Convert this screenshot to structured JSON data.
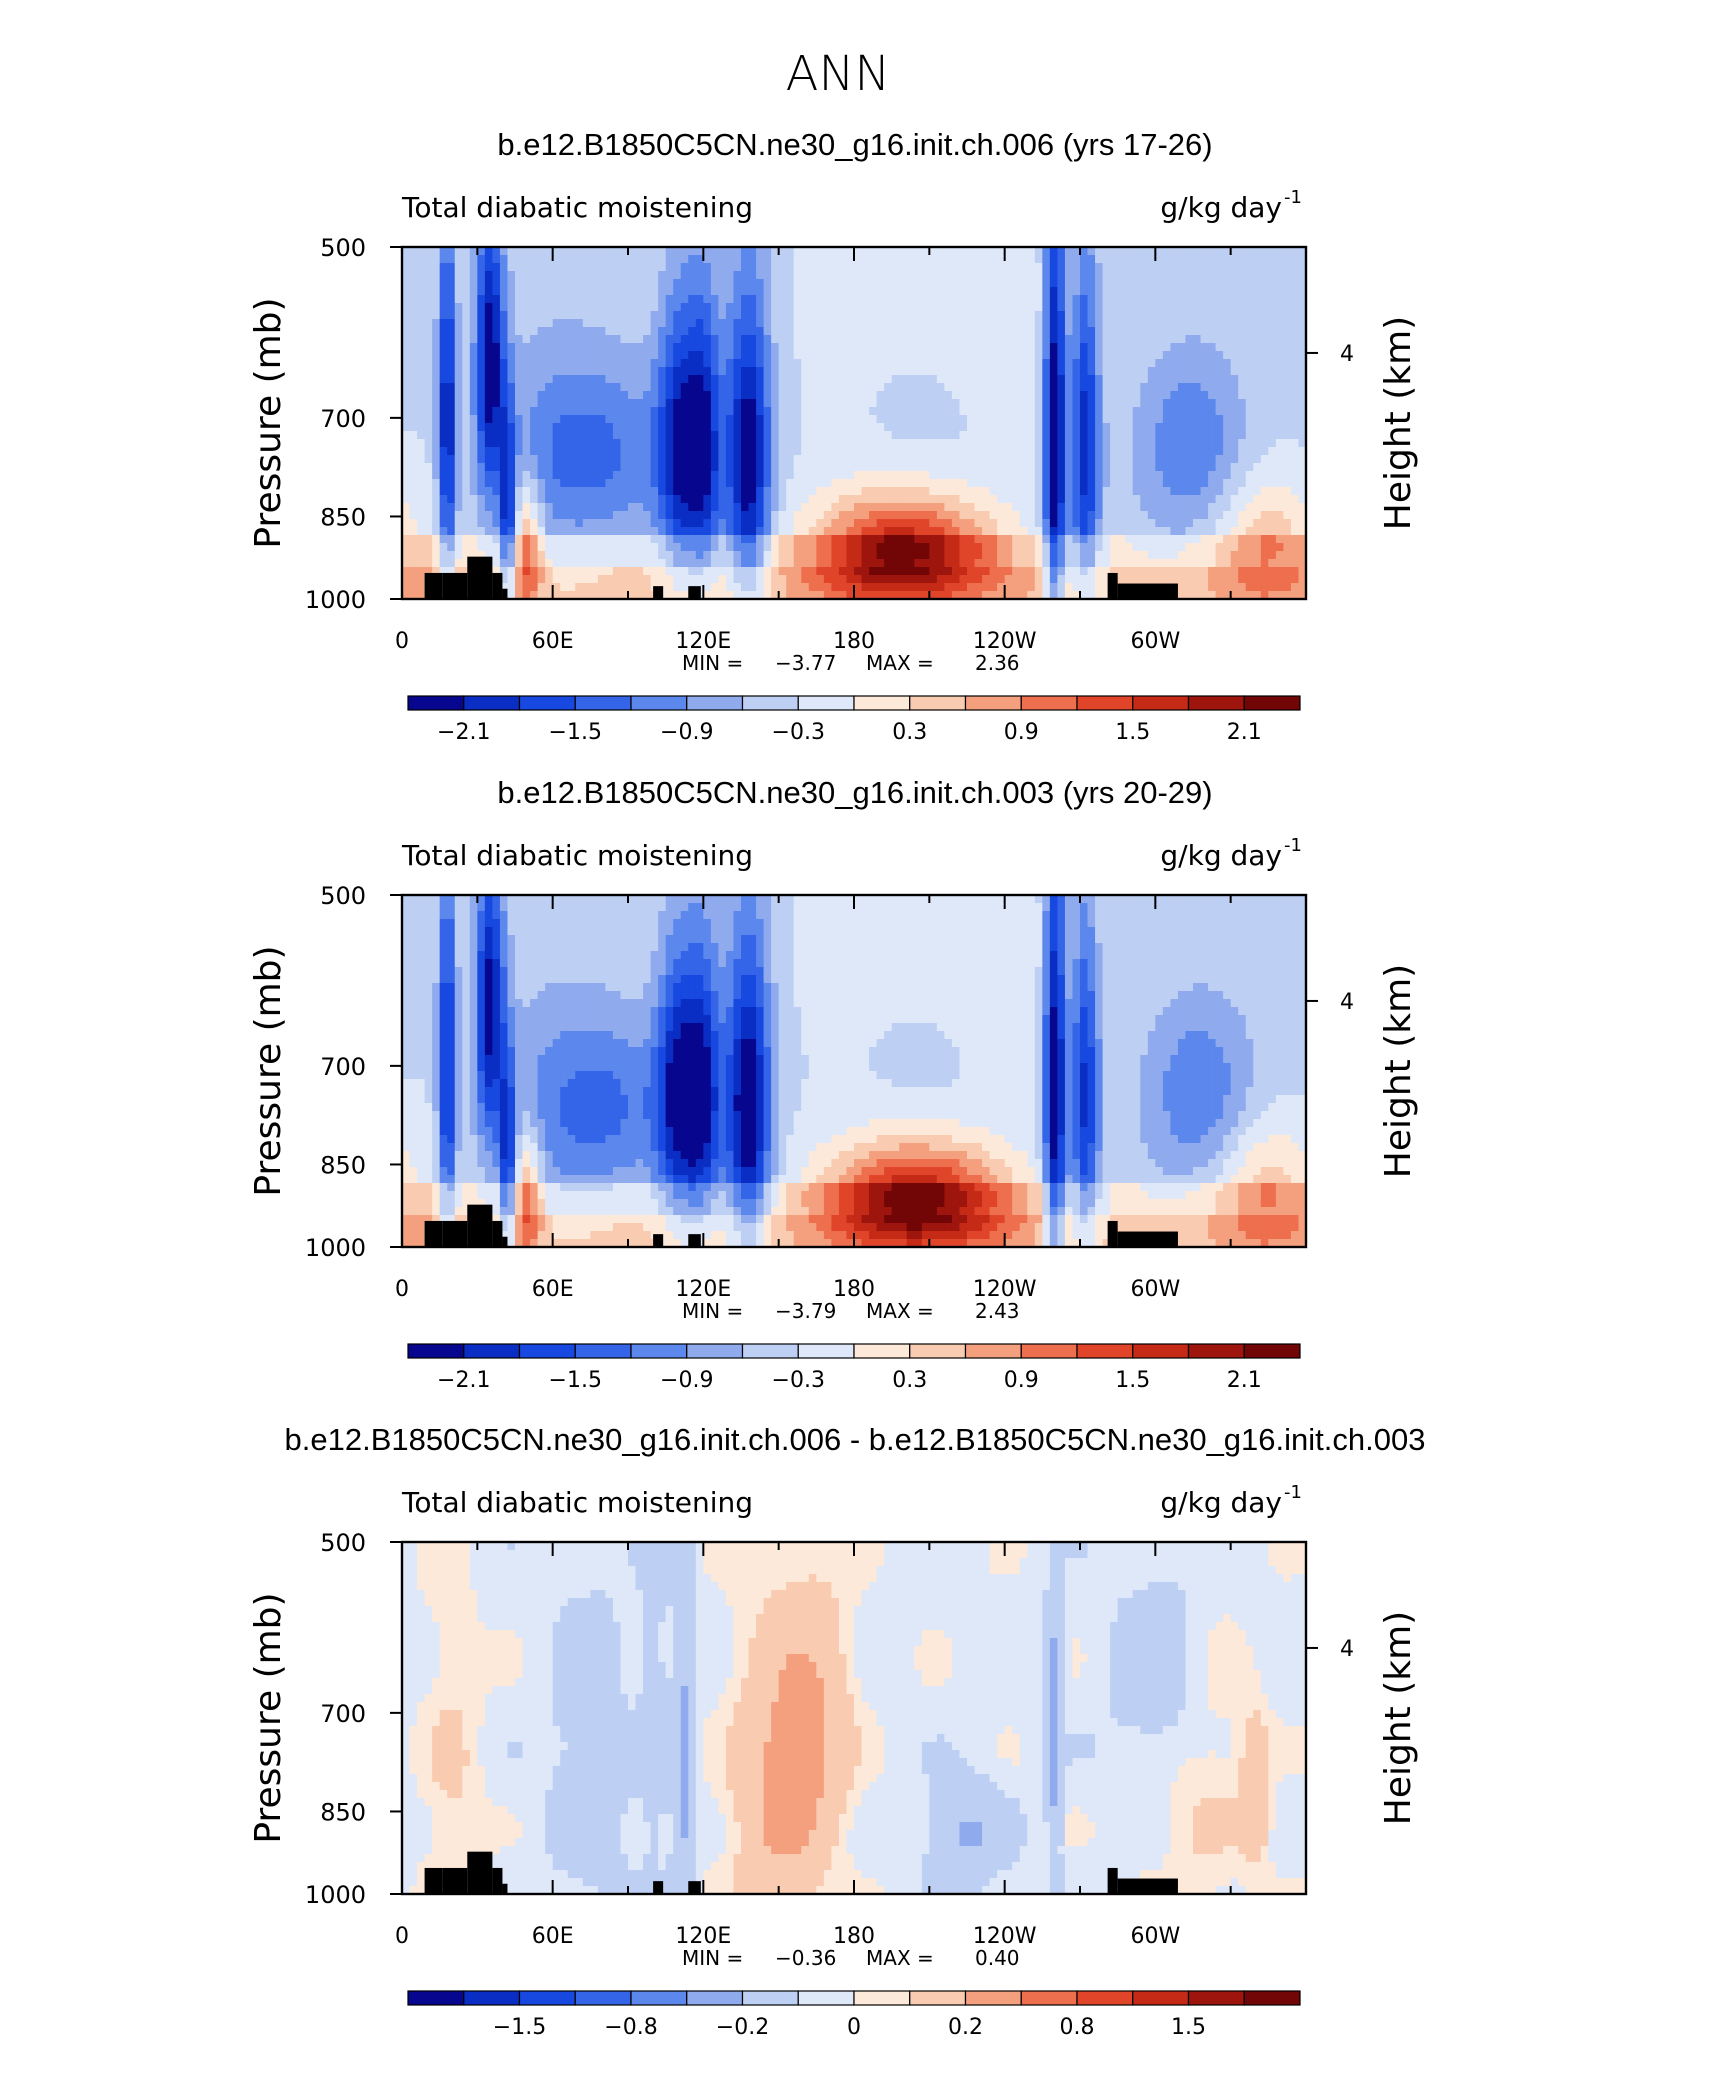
{
  "figure_title": "ANN",
  "chart_data": [
    {
      "type": "heatmap",
      "title": "b.e12.B1850C5CN.ne30_g16.init.ch.006 (yrs 17-26)",
      "variable": "Total diabatic moistening",
      "units": "g/kg day",
      "units_exp": "-1",
      "ylabel": "Pressure (mb)",
      "ylabel_right": "Height (km)",
      "y_ticks": [
        "500",
        "700",
        "850",
        "1000"
      ],
      "y_right_ticks": [
        "4"
      ],
      "x_ticks": [
        "0",
        "60E",
        "120E",
        "180",
        "120W",
        "60W"
      ],
      "min_label": "MIN =",
      "min_value": "−3.77",
      "max_label": "MAX =",
      "max_value": "2.36",
      "colorbar_labels": [
        "−2.1",
        "−1.5",
        "−0.9",
        "−0.3",
        "0.3",
        "0.9",
        "1.5",
        "2.1"
      ],
      "colors": [
        "#06068e",
        "#0a2ec4",
        "#1748e0",
        "#3465e8",
        "#5c87ec",
        "#8fabee",
        "#bdd0f3",
        "#dfe8f9",
        "#fde9d9",
        "#f9cbb0",
        "#f4a07e",
        "#ee6f4d",
        "#e0452a",
        "#c52a17",
        "#9d150c",
        "#720505"
      ],
      "features": [
        {
          "lon": 18,
          "p": 700,
          "v": -1.8,
          "wlon": 2.5,
          "wp": 180
        },
        {
          "lon": 35,
          "p": 620,
          "v": -2.0,
          "wlon": 4,
          "wp": 120
        },
        {
          "lon": 42,
          "p": 850,
          "v": -1.5,
          "wlon": 2.2,
          "wp": 120
        },
        {
          "lon": 50,
          "p": 900,
          "v": 1.2,
          "wlon": 4,
          "wp": 80
        },
        {
          "lon": 75,
          "p": 750,
          "v": -1.0,
          "wlon": 25,
          "wp": 100
        },
        {
          "lon": 110,
          "p": 740,
          "v": -1.5,
          "wlon": 6,
          "wp": 140
        },
        {
          "lon": 120,
          "p": 740,
          "v": -1.6,
          "wlon": 5,
          "wp": 140
        },
        {
          "lon": 138,
          "p": 760,
          "v": -2.0,
          "wlon": 6,
          "wp": 160
        },
        {
          "lon": 200,
          "p": 910,
          "v": 2.2,
          "wlon": 25,
          "wp": 70
        },
        {
          "lon": 260,
          "p": 730,
          "v": -2.2,
          "wlon": 3,
          "wp": 250
        },
        {
          "lon": 272,
          "p": 730,
          "v": -1.6,
          "wlon": 4,
          "wp": 180
        },
        {
          "lon": 315,
          "p": 740,
          "v": -0.9,
          "wlon": 15,
          "wp": 100
        },
        {
          "lon": 235,
          "p": 560,
          "v": 0.2,
          "wlon": 45,
          "wp": 80
        },
        {
          "lon": 345,
          "p": 900,
          "v": 0.9,
          "wlon": 15,
          "wp": 90
        }
      ]
    },
    {
      "type": "heatmap",
      "title": "b.e12.B1850C5CN.ne30_g16.init.ch.003 (yrs 20-29)",
      "variable": "Total diabatic moistening",
      "units": "g/kg day",
      "units_exp": "-1",
      "ylabel": "Pressure (mb)",
      "ylabel_right": "Height (km)",
      "y_ticks": [
        "500",
        "700",
        "850",
        "1000"
      ],
      "y_right_ticks": [
        "4"
      ],
      "x_ticks": [
        "0",
        "60E",
        "120E",
        "180",
        "120W",
        "60W"
      ],
      "min_label": "MIN =",
      "min_value": "−3.79",
      "max_label": "MAX =",
      "max_value": "2.43",
      "colorbar_labels": [
        "−2.1",
        "−1.5",
        "−0.9",
        "−0.3",
        "0.3",
        "0.9",
        "1.5",
        "2.1"
      ],
      "colors": [
        "#06068e",
        "#0a2ec4",
        "#1748e0",
        "#3465e8",
        "#5c87ec",
        "#8fabee",
        "#bdd0f3",
        "#dfe8f9",
        "#fde9d9",
        "#f9cbb0",
        "#f4a07e",
        "#ee6f4d",
        "#e0452a",
        "#c52a17",
        "#9d150c",
        "#720505"
      ],
      "features": [
        {
          "lon": 18,
          "p": 700,
          "v": -1.7,
          "wlon": 2.5,
          "wp": 180
        },
        {
          "lon": 35,
          "p": 620,
          "v": -1.9,
          "wlon": 4,
          "wp": 120
        },
        {
          "lon": 42,
          "p": 850,
          "v": -1.4,
          "wlon": 2.2,
          "wp": 120
        },
        {
          "lon": 50,
          "p": 900,
          "v": 1.2,
          "wlon": 4,
          "wp": 80
        },
        {
          "lon": 78,
          "p": 760,
          "v": -1.0,
          "wlon": 25,
          "wp": 100
        },
        {
          "lon": 110,
          "p": 740,
          "v": -1.6,
          "wlon": 6,
          "wp": 140
        },
        {
          "lon": 120,
          "p": 740,
          "v": -1.5,
          "wlon": 5,
          "wp": 140
        },
        {
          "lon": 138,
          "p": 760,
          "v": -2.1,
          "wlon": 6,
          "wp": 160
        },
        {
          "lon": 205,
          "p": 910,
          "v": 2.3,
          "wlon": 25,
          "wp": 70
        },
        {
          "lon": 260,
          "p": 730,
          "v": -2.1,
          "wlon": 3,
          "wp": 250
        },
        {
          "lon": 272,
          "p": 740,
          "v": -1.5,
          "wlon": 4,
          "wp": 180
        },
        {
          "lon": 318,
          "p": 740,
          "v": -0.9,
          "wlon": 15,
          "wp": 100
        },
        {
          "lon": 235,
          "p": 560,
          "v": 0.2,
          "wlon": 45,
          "wp": 80
        },
        {
          "lon": 345,
          "p": 900,
          "v": 0.9,
          "wlon": 15,
          "wp": 90
        }
      ]
    },
    {
      "type": "heatmap",
      "title": "b.e12.B1850C5CN.ne30_g16.init.ch.006 - b.e12.B1850C5CN.ne30_g16.init.ch.003",
      "variable": "Total diabatic moistening",
      "units": "g/kg day",
      "units_exp": "-1",
      "ylabel": "Pressure (mb)",
      "ylabel_right": "Height (km)",
      "y_ticks": [
        "500",
        "700",
        "850",
        "1000"
      ],
      "y_right_ticks": [
        "4"
      ],
      "x_ticks": [
        "0",
        "60E",
        "120E",
        "180",
        "120W",
        "60W"
      ],
      "min_label": "MIN =",
      "min_value": "−0.36",
      "max_label": "MAX =",
      "max_value": "0.40",
      "colorbar_labels": [
        "−1.5",
        "−0.8",
        "−0.2",
        "0",
        "0.2",
        "0.8",
        "1.5"
      ],
      "colors": [
        "#06068e",
        "#0a2ec4",
        "#1748e0",
        "#3465e8",
        "#5c87ec",
        "#8fabee",
        "#bdd0f3",
        "#dfe8f9",
        "#fde9d9",
        "#f9cbb0",
        "#f4a07e",
        "#ee6f4d",
        "#e0452a",
        "#c52a17",
        "#9d150c",
        "#720505"
      ],
      "features": [
        {
          "lon": 150,
          "p": 820,
          "v": 0.25,
          "wlon": 12,
          "wp": 160
        },
        {
          "lon": 165,
          "p": 720,
          "v": 0.18,
          "wlon": 10,
          "wp": 120
        },
        {
          "lon": 112,
          "p": 780,
          "v": -0.22,
          "wlon": 3,
          "wp": 200
        },
        {
          "lon": 100,
          "p": 720,
          "v": -0.12,
          "wlon": 3,
          "wp": 140
        },
        {
          "lon": 225,
          "p": 890,
          "v": -0.2,
          "wlon": 10,
          "wp": 60
        },
        {
          "lon": 260,
          "p": 720,
          "v": -0.3,
          "wlon": 2,
          "wp": 130
        },
        {
          "lon": 75,
          "p": 800,
          "v": -0.08,
          "wlon": 12,
          "wp": 200
        },
        {
          "lon": 20,
          "p": 800,
          "v": 0.08,
          "wlon": 8,
          "wp": 200
        },
        {
          "lon": 320,
          "p": 800,
          "v": 0.08,
          "wlon": 12,
          "wp": 200
        },
        {
          "lon": 340,
          "p": 820,
          "v": 0.18,
          "wlon": 4,
          "wp": 80
        },
        {
          "lon": 305,
          "p": 650,
          "v": -0.1,
          "wlon": 15,
          "wp": 100
        }
      ]
    }
  ],
  "topography": {
    "note": "terrain blocks reaching up to pressure (mb) at longitude",
    "blocks": [
      {
        "lon0": 9,
        "lon1": 16,
        "p": 950
      },
      {
        "lon0": 16,
        "lon1": 26,
        "p": 950
      },
      {
        "lon0": 26,
        "lon1": 36,
        "p": 920
      },
      {
        "lon0": 36,
        "lon1": 40,
        "p": 950
      },
      {
        "lon0": 40,
        "lon1": 42,
        "p": 980
      },
      {
        "lon0": 100,
        "lon1": 104,
        "p": 975
      },
      {
        "lon0": 114,
        "lon1": 119,
        "p": 975
      },
      {
        "lon0": 281,
        "lon1": 285,
        "p": 950
      },
      {
        "lon0": 285,
        "lon1": 309,
        "p": 970
      }
    ]
  }
}
